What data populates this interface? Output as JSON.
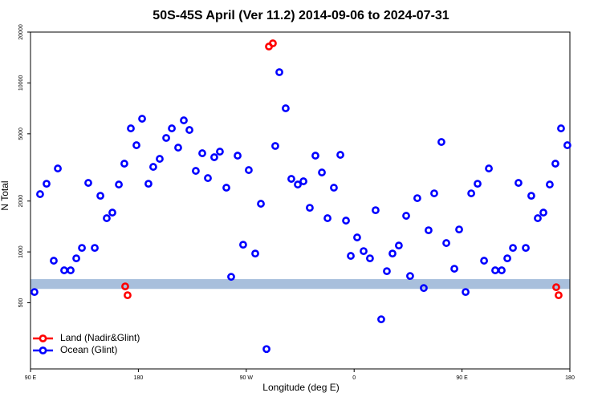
{
  "chart_data": {
    "type": "scatter",
    "title": "50S-45S April (Ver 11.2)   2014-09-06 to 2024-07-31",
    "xlabel": "Longitude (deg E)",
    "ylabel": "N Total",
    "xlim": [
      90,
      540
    ],
    "xticks": [
      {
        "value": 90,
        "label": "90 E"
      },
      180,
      {
        "value": 270,
        "label": "90 W"
      },
      {
        "value": 360,
        "label": "0"
      },
      {
        "value": 450,
        "label": "90 E"
      },
      {
        "value": 540,
        "label": "180"
      }
    ],
    "ylim": [
      203,
      20000
    ],
    "yticks": [
      500,
      1000,
      2000,
      5000,
      10000,
      20000
    ],
    "log_y": true,
    "legend": "lower left",
    "band": [
      604,
      690
    ],
    "band_color": "#a8bfdc",
    "series": [
      {
        "name": "Land (Nadir&Glint)",
        "color": "#ff0000",
        "x": [
          169.0,
          171.0,
          288.9,
          292.2,
          528.6,
          530.6
        ],
        "values": [
          625,
          554,
          16430,
          17160,
          618,
          554
        ]
      },
      {
        "name": "Ocean (Glint)",
        "color": "#0000ff",
        "x": [
          93.3,
          98.0,
          103.4,
          109.4,
          112.8,
          118.1,
          123.5,
          128.2,
          132.9,
          138.2,
          143.6,
          148.3,
          153.6,
          158.3,
          163.7,
          168.3,
          173.7,
          178.4,
          183.1,
          188.4,
          192.4,
          197.8,
          203.2,
          207.9,
          213.2,
          217.9,
          222.6,
          227.9,
          233.3,
          238.0,
          243.3,
          248.0,
          253.4,
          257.4,
          262.8,
          267.4,
          272.1,
          277.5,
          282.2,
          286.9,
          294.2,
          297.6,
          302.9,
          307.6,
          313.0,
          317.7,
          323.0,
          327.7,
          333.1,
          337.8,
          343.1,
          348.5,
          353.2,
          357.2,
          362.5,
          367.9,
          373.2,
          377.9,
          382.6,
          387.3,
          392.0,
          397.3,
          403.4,
          406.7,
          412.7,
          418.1,
          422.1,
          426.8,
          432.8,
          436.9,
          443.6,
          447.6,
          453.0,
          457.7,
          463.0,
          468.4,
          472.4,
          477.7,
          483.1,
          487.8,
          492.5,
          497.1,
          503.2,
          507.8,
          513.2,
          517.9,
          523.2,
          527.9,
          532.6,
          537.9
        ],
        "values": [
          579,
          2197,
          2532,
          887,
          3117,
          778,
          778,
          916,
          1056,
          2561,
          1056,
          2149,
          1583,
          1709,
          2505,
          3329,
          5384,
          4280,
          6140,
          2532,
          3186,
          3554,
          4725,
          5384,
          4142,
          6006,
          5268,
          3017,
          3837,
          2734,
          3634,
          3922,
          2399,
          712,
          3713,
          1103,
          3050,
          978,
          1927,
          266,
          4236,
          11580,
          7079,
          2705,
          2505,
          2617,
          1824,
          3713,
          2952,
          1583,
          2399,
          3754,
          1532,
          947,
          1218,
          1011,
          916,
          1765,
          399,
          769,
          978,
          1091,
          1636,
          720,
          2080,
          611,
          1343,
          2221,
          4472,
          1128,
          795,
          1358,
          579,
          2221,
          2532,
          887,
          3117,
          778,
          778,
          916,
          1056,
          2561,
          1056,
          2149,
          1583,
          1709,
          2505,
          3329,
          5384,
          4280
        ]
      }
    ]
  }
}
